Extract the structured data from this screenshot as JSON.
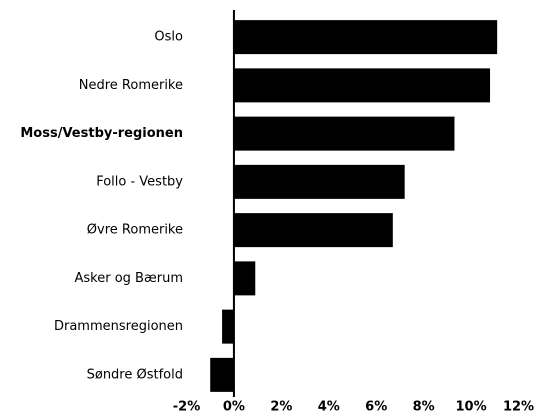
{
  "chart_data": {
    "type": "bar",
    "orientation": "horizontal",
    "categories": [
      "Oslo",
      "Nedre Romerike",
      "Moss/Vestby-regionen",
      "Follo - Vestby",
      "Øvre Romerike",
      "Asker og Bærum",
      "Drammensregionen",
      "Søndre Østfold"
    ],
    "values": [
      11.1,
      10.8,
      9.3,
      7.2,
      6.7,
      0.9,
      -0.5,
      -1.0
    ],
    "color": "#000000",
    "highlight_category": 2,
    "xlim": [
      -2,
      12
    ],
    "xticks": [
      {
        "value": -2,
        "label": "-2%"
      },
      {
        "value": 0,
        "label": "0%"
      },
      {
        "value": 2,
        "label": "2%"
      },
      {
        "value": 4,
        "label": "4%"
      },
      {
        "value": 6,
        "label": "6%"
      },
      {
        "value": 8,
        "label": "8%"
      },
      {
        "value": 10,
        "label": "10%"
      },
      {
        "value": 12,
        "label": "12%"
      }
    ],
    "grid": false
  }
}
